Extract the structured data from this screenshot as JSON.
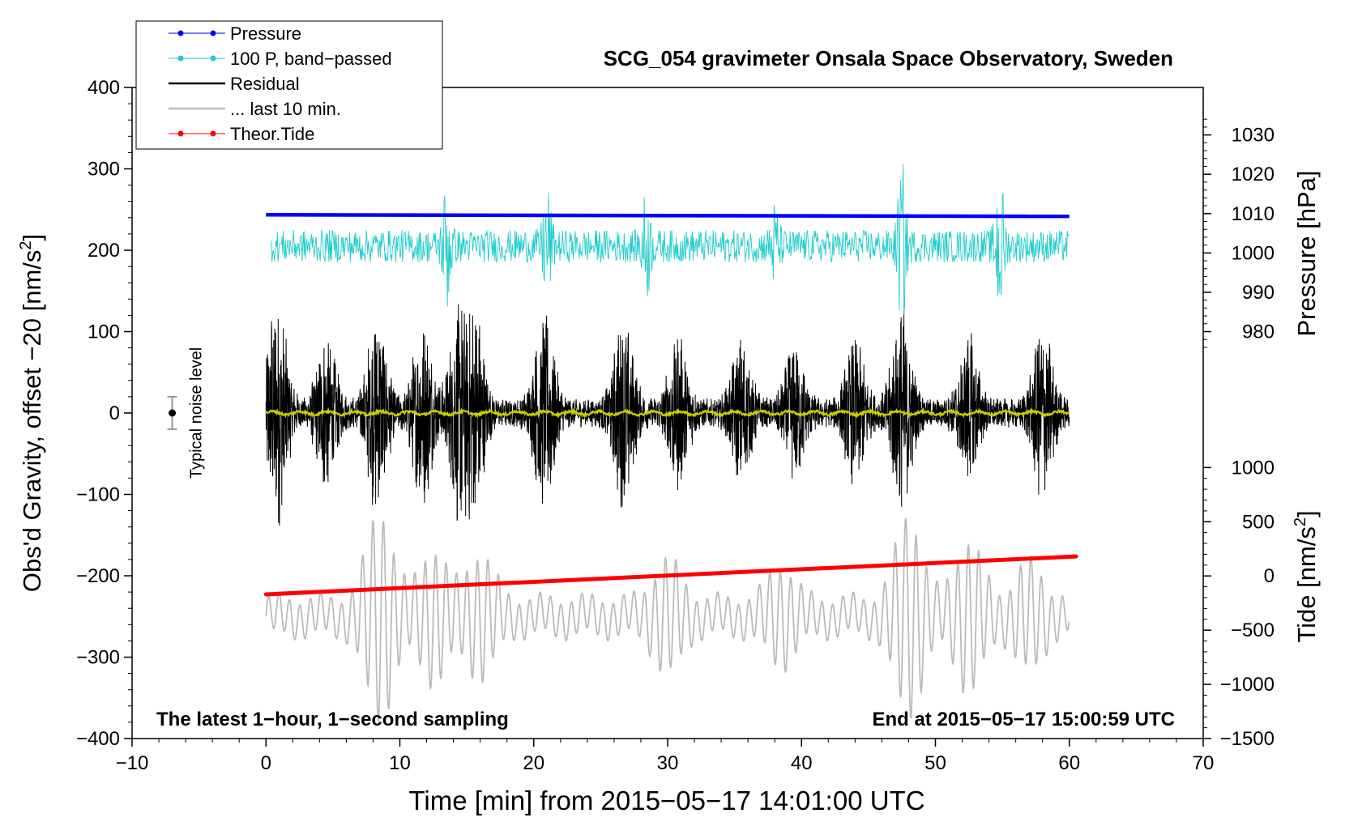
{
  "chart_data": {
    "type": "line",
    "title": "SCG_054 gravimeter Onsala Space Observatory, Sweden",
    "xlabel": "Time [min] from 2015−05−17 14:01:00 UTC",
    "ylabel_left": "Obs'd Gravity, offset −20 [nm/s²]",
    "ylabel_right_pressure": "Pressure [hPa]",
    "ylabel_right_tide": "Tide [nm/s²]",
    "xlim": [
      -10,
      70
    ],
    "ylim": [
      -400,
      400
    ],
    "xticks": [
      {
        "value": -10,
        "label": "−10"
      },
      {
        "value": 0,
        "label": "0"
      },
      {
        "value": 10,
        "label": "10"
      },
      {
        "value": 20,
        "label": "20"
      },
      {
        "value": 30,
        "label": "30"
      },
      {
        "value": 40,
        "label": "40"
      },
      {
        "value": 50,
        "label": "50"
      },
      {
        "value": 60,
        "label": "60"
      },
      {
        "value": 70,
        "label": "70"
      }
    ],
    "yticks_left": [
      {
        "value": 400,
        "label": "400"
      },
      {
        "value": 300,
        "label": "300"
      },
      {
        "value": 200,
        "label": "200"
      },
      {
        "value": 100,
        "label": "100"
      },
      {
        "value": 0,
        "label": "0"
      },
      {
        "value": -100,
        "label": "−100"
      },
      {
        "value": -200,
        "label": "−200"
      },
      {
        "value": -300,
        "label": "−300"
      },
      {
        "value": -400,
        "label": "−400"
      }
    ],
    "pressure_axis": {
      "map": {
        "hpa_a": 1010,
        "y_a": 245,
        "hpa_b": 980,
        "y_b": 100
      },
      "ticks": [
        {
          "value": 1030,
          "label": "1030"
        },
        {
          "value": 1020,
          "label": "1020"
        },
        {
          "value": 1010,
          "label": "1010"
        },
        {
          "value": 1000,
          "label": "1000"
        },
        {
          "value": 990,
          "label": "990"
        },
        {
          "value": 980,
          "label": "980"
        }
      ]
    },
    "tide_axis": {
      "map": {
        "tide_a": 1000,
        "y_a": -67,
        "tide_b": -1500,
        "y_b": -400
      },
      "ticks": [
        {
          "value": 1000,
          "label": "1000"
        },
        {
          "value": 500,
          "label": "500"
        },
        {
          "value": 0,
          "label": "0"
        },
        {
          "value": -500,
          "label": "−500"
        },
        {
          "value": -1000,
          "label": "−1000"
        },
        {
          "value": -1500,
          "label": "−1500"
        }
      ]
    },
    "series": [
      {
        "name": "Pressure",
        "color": "#0000ff",
        "pressure_hpa_start": 1009.7,
        "pressure_hpa_end": 1009.3,
        "x_range": [
          0,
          60
        ]
      },
      {
        "name": "100 P, band−passed",
        "color": "#22cccc",
        "center": 205,
        "typical_amplitude": 20,
        "x_range": [
          0,
          60
        ]
      },
      {
        "name": "Residual",
        "color": "#000000",
        "center": 0,
        "typical_amplitude": 70,
        "max_amplitude": 145,
        "x_range": [
          0,
          60
        ],
        "bursts": [
          {
            "t": 0.8,
            "a": 140
          },
          {
            "t": 4.5,
            "a": 85
          },
          {
            "t": 8.3,
            "a": 115
          },
          {
            "t": 11.7,
            "a": 105
          },
          {
            "t": 14.5,
            "a": 130
          },
          {
            "t": 15.5,
            "a": 125
          },
          {
            "t": 20.8,
            "a": 115
          },
          {
            "t": 26.7,
            "a": 110
          },
          {
            "t": 30.8,
            "a": 85
          },
          {
            "t": 35.5,
            "a": 80
          },
          {
            "t": 39.5,
            "a": 75
          },
          {
            "t": 44,
            "a": 80
          },
          {
            "t": 47.5,
            "a": 120
          },
          {
            "t": 52.5,
            "a": 85
          },
          {
            "t": 58,
            "a": 100
          }
        ]
      },
      {
        "name": "Residual mean",
        "color": "#cccc00",
        "value": 0,
        "x_range": [
          0,
          60
        ]
      },
      {
        "name": "... last 10 min.",
        "color": "#bbbbbb",
        "center": -250,
        "x_range": [
          0,
          60
        ],
        "bursts": [
          {
            "t": 8.5,
            "a": 105
          },
          {
            "t": 12.5,
            "a": 60
          },
          {
            "t": 16,
            "a": 55
          },
          {
            "t": 30,
            "a": 48
          },
          {
            "t": 38.5,
            "a": 40
          },
          {
            "t": 48,
            "a": 100
          },
          {
            "t": 52.5,
            "a": 70
          },
          {
            "t": 57,
            "a": 45
          }
        ]
      },
      {
        "name": "Theor.Tide",
        "color": "#ff0000",
        "x": [
          0,
          60.5
        ],
        "tide_nm_s2": [
          -170,
          180
        ]
      }
    ],
    "noise_marker": {
      "x": -7,
      "y": 0,
      "error": 20,
      "label": "Typical noise level"
    },
    "legend": {
      "placement": "top-left",
      "entries": [
        {
          "label": "Pressure",
          "color": "#0000ff",
          "marker": true
        },
        {
          "label": "100 P, band−passed",
          "color": "#22cccc",
          "marker": true
        },
        {
          "label": "Residual",
          "color": "#000000",
          "marker": false
        },
        {
          "label": "... last 10 min.",
          "color": "#bbbbbb",
          "marker": false
        },
        {
          "label": "Theor.Tide",
          "color": "#ff0000",
          "marker": true
        }
      ]
    },
    "annotations": {
      "bottom_left": "The latest 1−hour, 1−second sampling",
      "bottom_right": "End at 2015−05−17 15:00:59 UTC"
    }
  }
}
